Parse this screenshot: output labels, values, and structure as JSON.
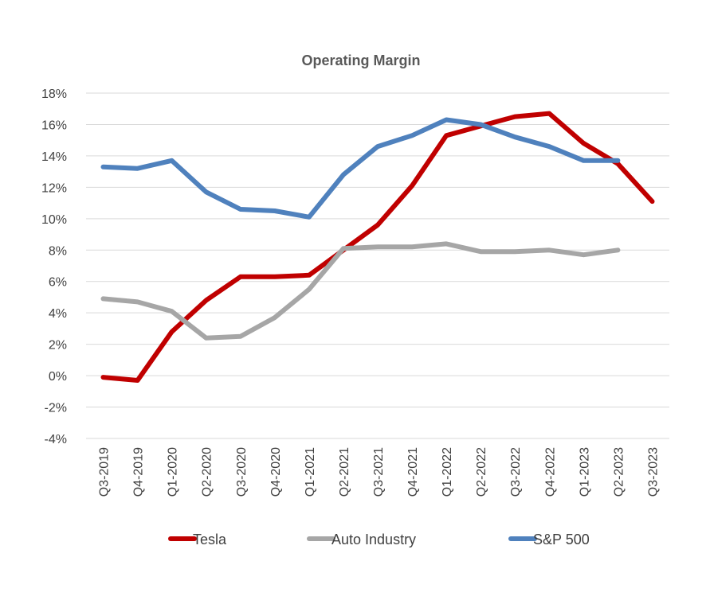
{
  "chart_data": {
    "type": "line",
    "title": "Operating Margin",
    "xlabel": "",
    "ylabel": "",
    "categories": [
      "Q3-2019",
      "Q4-2019",
      "Q1-2020",
      "Q2-2020",
      "Q3-2020",
      "Q4-2020",
      "Q1-2021",
      "Q2-2021",
      "Q3-2021",
      "Q4-2021",
      "Q1-2022",
      "Q2-2022",
      "Q3-2022",
      "Q4-2022",
      "Q1-2023",
      "Q2-2023",
      "Q3-2023"
    ],
    "ylim": [
      -4,
      18
    ],
    "yticks": [
      18,
      16,
      14,
      12,
      10,
      8,
      6,
      4,
      2,
      0,
      -2,
      -4
    ],
    "ytick_labels": [
      "18%",
      "16%",
      "14%",
      "12%",
      "10%",
      "8%",
      "6%",
      "4%",
      "2%",
      "0%",
      "-2%",
      "-4%"
    ],
    "grid": true,
    "legend_position": "bottom",
    "series": [
      {
        "name": "Tesla",
        "color": "#c00000",
        "values": [
          -0.1,
          -0.3,
          2.8,
          4.8,
          6.3,
          6.3,
          6.4,
          8.0,
          9.6,
          12.1,
          15.3,
          15.9,
          16.5,
          16.7,
          14.8,
          13.5,
          11.1
        ]
      },
      {
        "name": "Auto Industry",
        "color": "#a6a6a6",
        "values": [
          4.9,
          4.7,
          4.1,
          2.4,
          2.5,
          3.7,
          5.5,
          8.1,
          8.2,
          8.2,
          8.4,
          7.9,
          7.9,
          8.0,
          7.7,
          8.0,
          null
        ]
      },
      {
        "name": "S&P 500",
        "color": "#4f81bd",
        "values": [
          13.3,
          13.2,
          13.7,
          11.7,
          10.6,
          10.5,
          10.1,
          12.8,
          14.6,
          15.3,
          16.3,
          16.0,
          15.2,
          14.6,
          13.7,
          13.7,
          null
        ]
      }
    ]
  }
}
